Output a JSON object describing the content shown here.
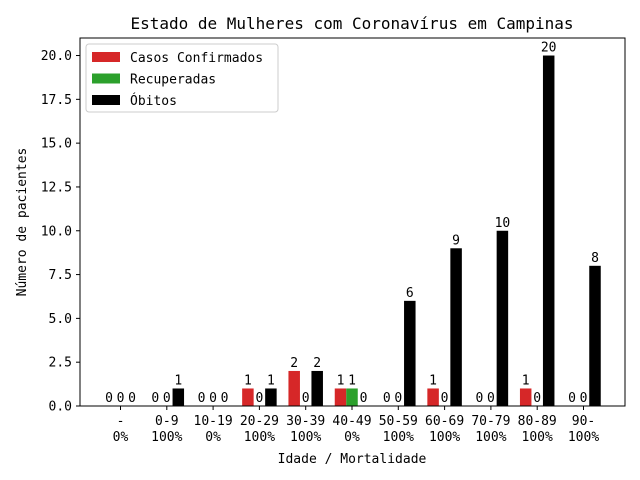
{
  "chart_data": {
    "type": "bar",
    "title": "Estado de Mulheres com Coronavírus em Campinas",
    "xlabel": "Idade / Mortalidade",
    "ylabel": "Número de pacientes",
    "ylim": [
      0,
      21
    ],
    "yticks": [
      "0.0",
      "2.5",
      "5.0",
      "7.5",
      "10.0",
      "12.5",
      "15.0",
      "17.5",
      "20.0"
    ],
    "ytick_values": [
      0,
      2.5,
      5,
      7.5,
      10,
      12.5,
      15,
      17.5,
      20
    ],
    "categories": [
      "-",
      "0-9",
      "10-19",
      "20-29",
      "30-39",
      "40-49",
      "50-59",
      "60-69",
      "70-79",
      "80-89",
      "90-"
    ],
    "mortality": [
      "0%",
      "100%",
      "0%",
      "100%",
      "100%",
      "0%",
      "100%",
      "100%",
      "100%",
      "100%",
      "100%"
    ],
    "series": [
      {
        "name": "Casos Confirmados",
        "color": "#d62728",
        "values": [
          0,
          0,
          0,
          1,
          2,
          1,
          0,
          1,
          0,
          1,
          0
        ]
      },
      {
        "name": "Recuperadas",
        "color": "#2ca02c",
        "values": [
          0,
          0,
          0,
          0,
          0,
          1,
          0,
          0,
          0,
          0,
          0
        ]
      },
      {
        "name": "Óbitos",
        "color": "#000000",
        "values": [
          0,
          1,
          0,
          1,
          2,
          0,
          6,
          9,
          10,
          20,
          8
        ]
      }
    ],
    "legend_position": "top-left",
    "grid": false
  }
}
